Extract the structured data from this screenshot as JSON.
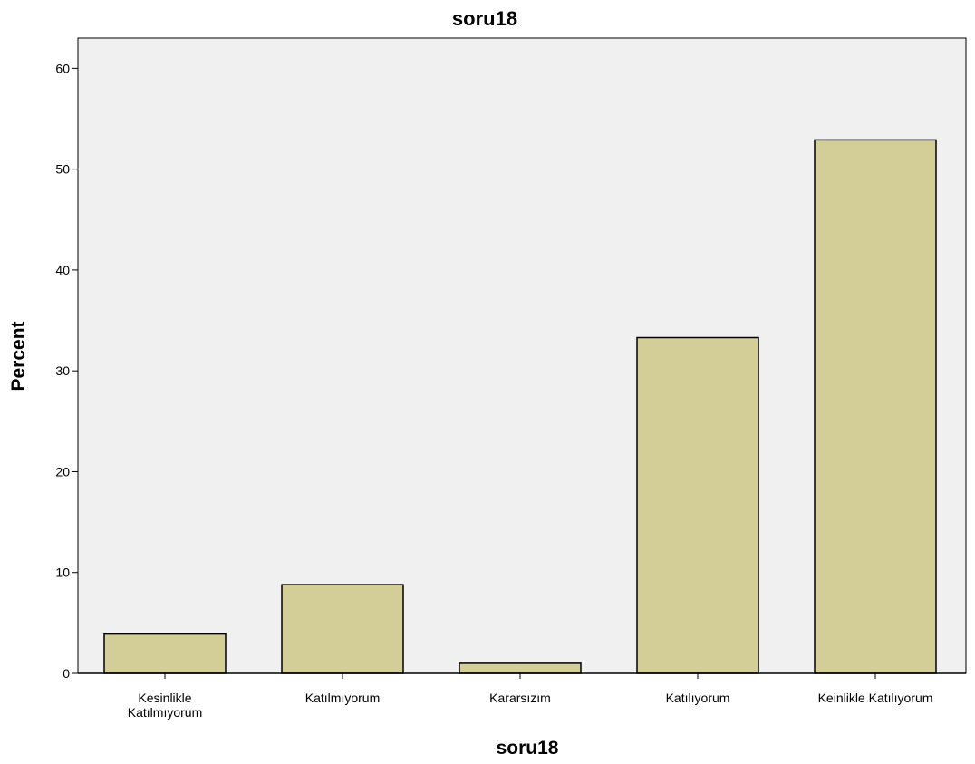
{
  "chart_data": {
    "type": "bar",
    "title": "soru18",
    "xlabel": "soru18",
    "ylabel": "Percent",
    "categories": [
      [
        "Kesinlikle",
        "Katılmıyorum"
      ],
      [
        "Katılmıyorum"
      ],
      [
        "Kararsızım"
      ],
      [
        "Katılıyorum"
      ],
      [
        "Keinlikle Katılıyorum"
      ]
    ],
    "values": [
      3.9,
      8.8,
      1.0,
      33.3,
      52.9
    ],
    "ylim": [
      0,
      63
    ],
    "yticks": [
      0,
      10,
      20,
      30,
      40,
      50,
      60
    ],
    "grid": false,
    "colors": {
      "plot_background": "#f0f0f0",
      "bar_fill": "#d3ce97",
      "bar_stroke": "#000000"
    }
  }
}
